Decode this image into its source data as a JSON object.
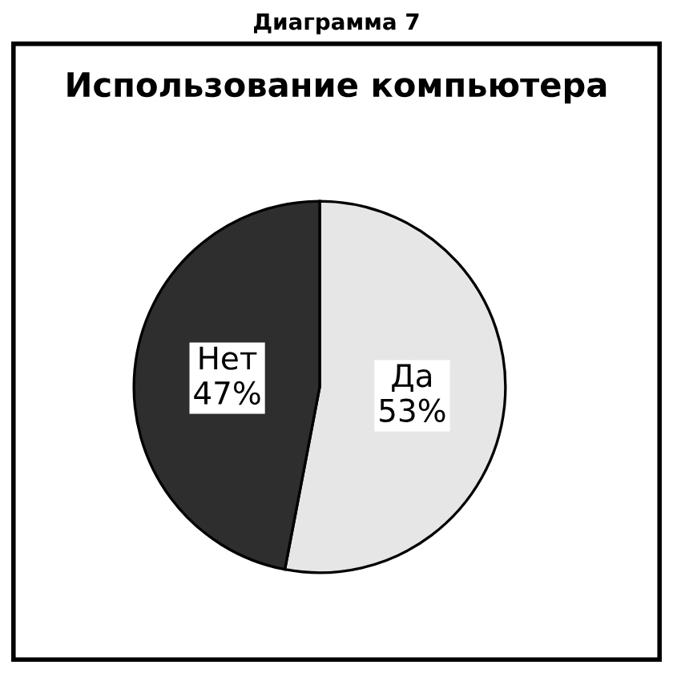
{
  "chart_data": {
    "type": "pie",
    "title": "Диаграмма 7",
    "subtitle": "Использование компьютера",
    "categories": [
      "Да",
      "Нет"
    ],
    "values": [
      53,
      47
    ],
    "colors": [
      "#e6e6e6",
      "#2e2e2e"
    ],
    "value_labels": [
      "53%",
      "47%"
    ]
  }
}
